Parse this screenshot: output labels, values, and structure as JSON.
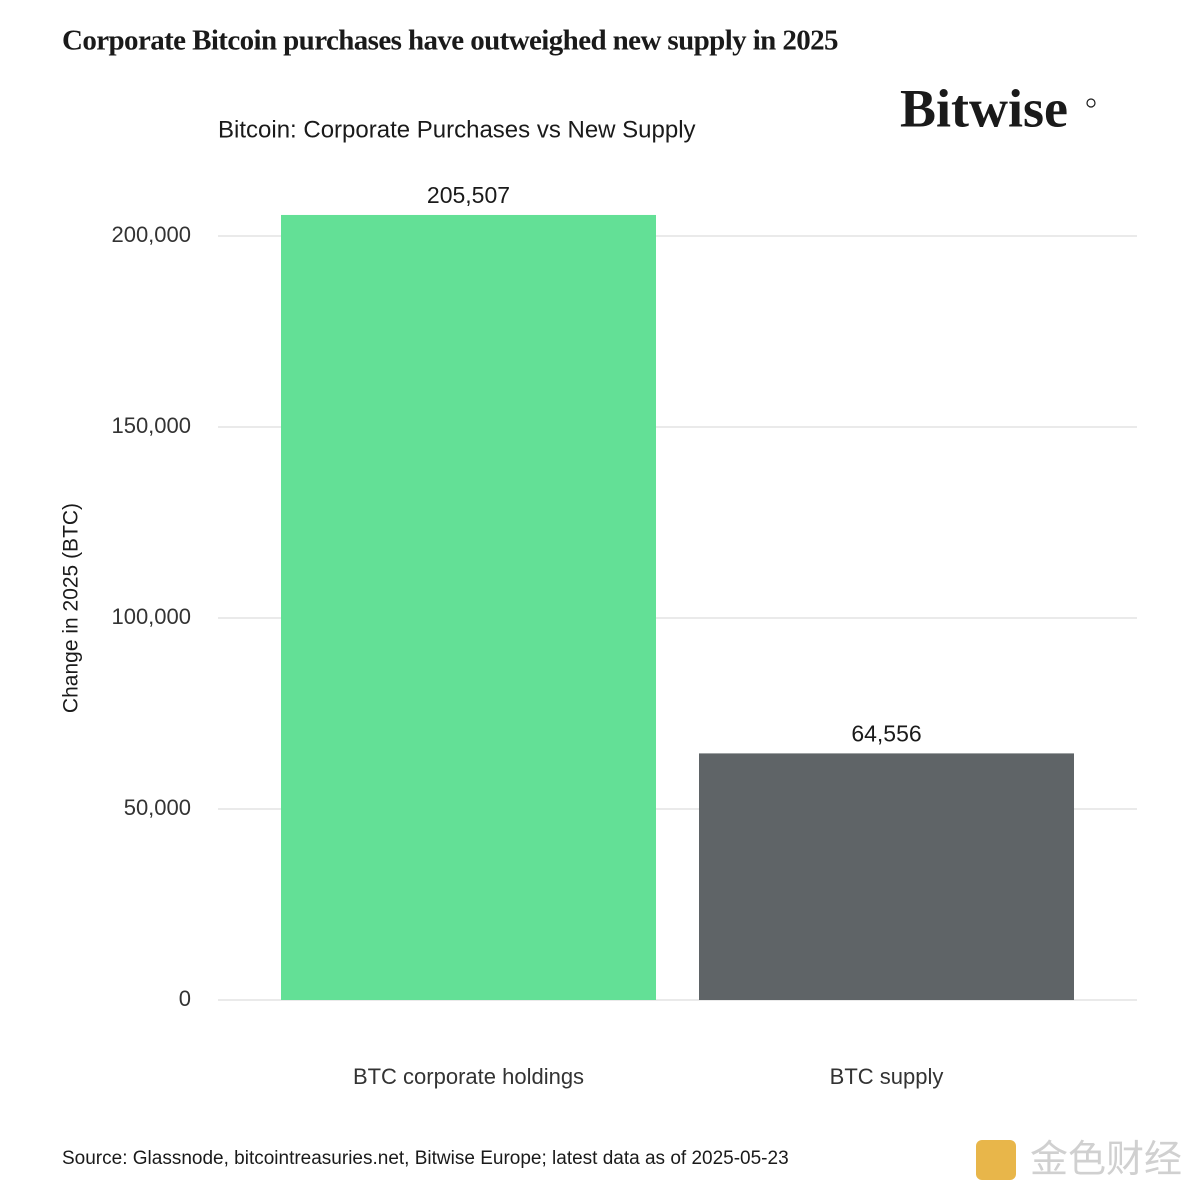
{
  "chart_data": {
    "type": "bar",
    "title": "Corporate Bitcoin purchases have outweighed new supply in 2025",
    "brand": "Bitwise",
    "subtitle": "Bitcoin: Corporate Purchases vs New Supply",
    "y_label": "Change in 2025 (BTC)",
    "categories": [
      "BTC corporate holdings",
      "BTC supply"
    ],
    "values": [
      205507,
      64556
    ],
    "value_labels": [
      "205,507",
      "64,556"
    ],
    "colors": [
      "#63e096",
      "#5f6467"
    ],
    "ylim": [
      0,
      210000
    ],
    "yticks": [
      0,
      {
        "value": 50000,
        "label": "50,000"
      },
      {
        "value": 100000,
        "label": "100,000"
      },
      {
        "value": 150000,
        "label": "150,000"
      },
      {
        "value": 200000,
        "label": "200,000"
      }
    ],
    "grid": true,
    "source": "Source: Glassnode, bitcointreasuries.net, Bitwise Europe; latest data as of 2025-05-23",
    "watermark": "金色财经"
  }
}
